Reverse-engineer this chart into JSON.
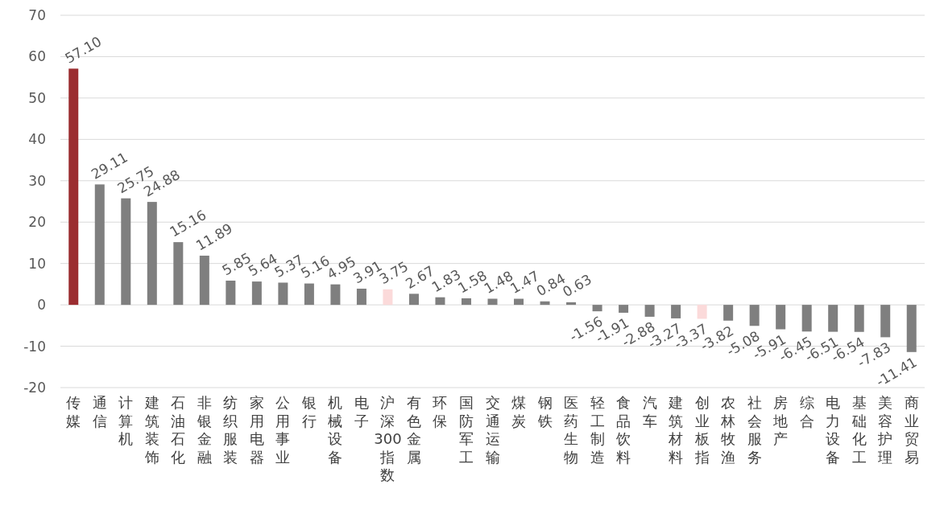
{
  "chart_data": {
    "type": "bar",
    "categories": [
      "传媒",
      "通信",
      "计算机",
      "建筑装饰",
      "石油石化",
      "非银金融",
      "纺织服装",
      "家用电器",
      "公用事业",
      "银行",
      "机械设备",
      "电子",
      "沪深300指数",
      "有色金属",
      "环保",
      "国防军工",
      "交通运输",
      "煤炭",
      "钢铁",
      "医药生物",
      "轻工制造",
      "食品饮料",
      "汽车",
      "建筑材料",
      "创业板指",
      "农林牧渔",
      "社会服务",
      "房地产",
      "综合",
      "电力设备",
      "基础化工",
      "美容护理",
      "商业贸易"
    ],
    "values": [
      57.1,
      29.11,
      25.75,
      24.88,
      15.16,
      11.89,
      5.85,
      5.64,
      5.37,
      5.16,
      4.95,
      3.91,
      3.75,
      2.67,
      1.83,
      1.58,
      1.48,
      1.47,
      0.84,
      0.63,
      -1.56,
      -1.91,
      -2.88,
      -3.27,
      -3.37,
      -3.82,
      -5.08,
      -5.91,
      -6.45,
      -6.51,
      -6.54,
      -7.83,
      -11.41
    ],
    "value_labels": [
      "57.10",
      "29.11",
      "25.75",
      "24.88",
      "15.16",
      "11.89",
      "5.85",
      "5.64",
      "5.37",
      "5.16",
      "4.95",
      "3.91",
      "3.75",
      "2.67",
      "1.83",
      "1.58",
      "1.48",
      "1.47",
      "0.84",
      "0.63",
      "-1.56",
      "-1.91",
      "-2.88",
      "-3.27",
      "-3.37",
      "-3.82",
      "-5.08",
      "-5.91",
      "-6.45",
      "-6.51",
      "-6.54",
      "-7.83",
      "-11.41"
    ],
    "colors": [
      "#9b2d30",
      "#7f7f7f",
      "#7f7f7f",
      "#7f7f7f",
      "#7f7f7f",
      "#7f7f7f",
      "#7f7f7f",
      "#7f7f7f",
      "#7f7f7f",
      "#7f7f7f",
      "#7f7f7f",
      "#7f7f7f",
      "#fbdada",
      "#7f7f7f",
      "#7f7f7f",
      "#7f7f7f",
      "#7f7f7f",
      "#7f7f7f",
      "#7f7f7f",
      "#7f7f7f",
      "#7f7f7f",
      "#7f7f7f",
      "#7f7f7f",
      "#7f7f7f",
      "#fbdada",
      "#7f7f7f",
      "#7f7f7f",
      "#7f7f7f",
      "#7f7f7f",
      "#7f7f7f",
      "#7f7f7f",
      "#7f7f7f",
      "#7f7f7f"
    ],
    "ylim": [
      -20,
      70
    ],
    "yticks": [
      -20,
      -10,
      0,
      10,
      20,
      30,
      40,
      50,
      60,
      70
    ],
    "grid": "y"
  }
}
